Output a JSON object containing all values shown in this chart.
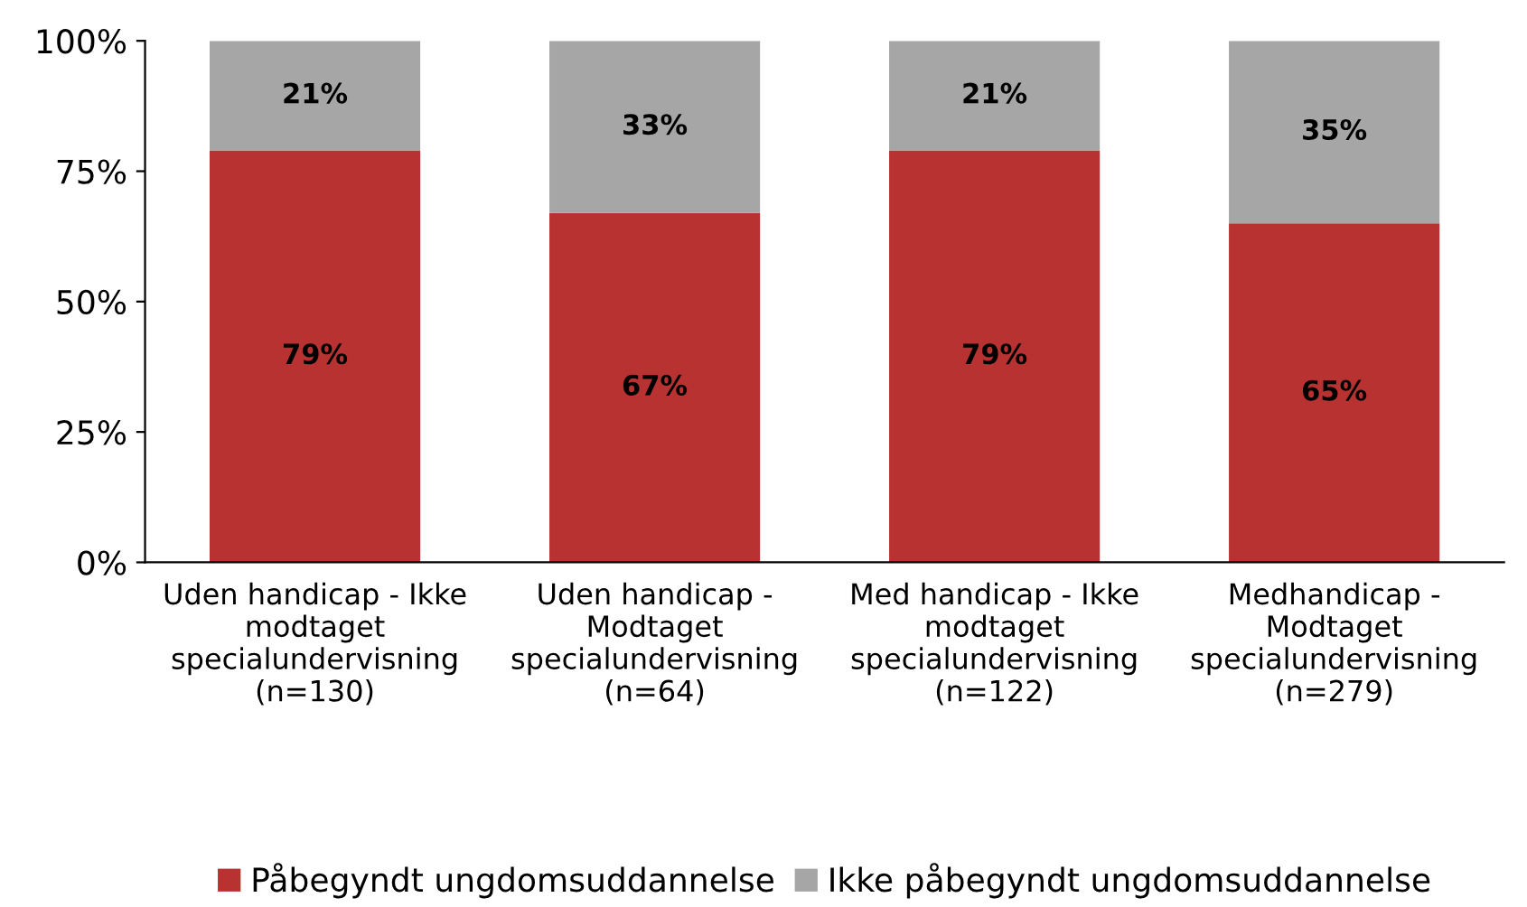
{
  "chart_data": {
    "type": "bar",
    "stacked": true,
    "categories": [
      "Uden handicap - Ikke\nmodtaget\nspecialundervisning\n(n=130)",
      "Uden handicap -\nModtaget\nspecialundervisning\n(n=64)",
      "Med handicap - Ikke\nmodtaget\nspecialundervisning\n(n=122)",
      "Medhandicap -\nModtaget\nspecialundervisning\n(n=279)"
    ],
    "series": [
      {
        "name": "Påbegyndt ungdomsuddannelse",
        "color": "#b83232",
        "values": [
          79,
          67,
          79,
          65
        ],
        "value_labels": [
          "79%",
          "67%",
          "79%",
          "65%"
        ]
      },
      {
        "name": "Ikke påbegyndt ungdomsuddannelse",
        "color": "#a6a6a6",
        "values": [
          21,
          33,
          21,
          35
        ],
        "value_labels": [
          "21%",
          "33%",
          "21%",
          "35%"
        ]
      }
    ],
    "ylim": [
      0,
      100
    ],
    "yticks": [
      {
        "value": 0,
        "label": "0%"
      },
      {
        "value": 25,
        "label": "25%"
      },
      {
        "value": 50,
        "label": "50%"
      },
      {
        "value": 75,
        "label": "75%"
      },
      {
        "value": 100,
        "label": "100%"
      }
    ],
    "legend": "bottom"
  }
}
